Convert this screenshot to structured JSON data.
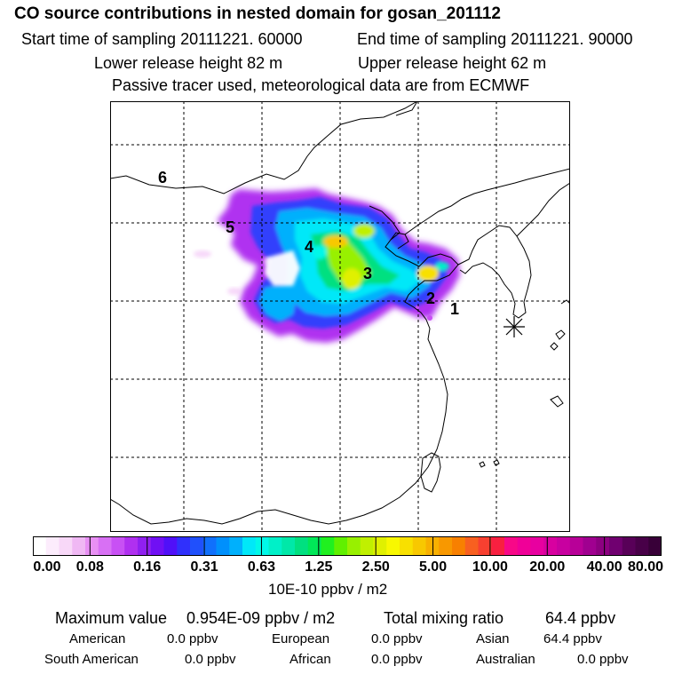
{
  "header": {
    "title": "CO  source contributions in nested domain for gosan_201112",
    "start_label": "Start time of sampling 20111221. 60000",
    "end_label": "End time of sampling 20111221. 90000",
    "lower_label": "Lower release height   82 m",
    "upper_label": "Upper release height   62 m",
    "note": "Passive tracer used, meteorological data are from ECMWF"
  },
  "map": {
    "markers": [
      "1",
      "2",
      "3",
      "4",
      "5",
      "6"
    ],
    "receptor_icon": "asterisk-icon"
  },
  "colorbar": {
    "ticks": [
      "0.00",
      "0.08",
      "0.16",
      "0.31",
      "0.63",
      "1.25",
      "2.50",
      "5.00",
      "10.00",
      "20.00",
      "40.00",
      "80.00"
    ],
    "unit": "10E-10 ppbv / m2",
    "colors": [
      "#ffffff",
      "#fcecfc",
      "#f8d8f8",
      "#f0b8f4",
      "#e890f4",
      "#d870f4",
      "#c850f4",
      "#b030f0",
      "#9020f0",
      "#7010f4",
      "#5010f8",
      "#3030fc",
      "#2050fc",
      "#1070fc",
      "#0090fc",
      "#00b0fc",
      "#00e8f8",
      "#00f8e8",
      "#00f0c8",
      "#00e8a8",
      "#00e080",
      "#00e858",
      "#20f020",
      "#60f000",
      "#98f000",
      "#c0f000",
      "#e0f000",
      "#f8f800",
      "#f8e000",
      "#f8c800",
      "#f8b000",
      "#f89800",
      "#f88000",
      "#f86020",
      "#f84030",
      "#f82040",
      "#f80888",
      "#f00098",
      "#e800a0",
      "#d800a0",
      "#c800a0",
      "#b80098",
      "#a00090",
      "#8c0080",
      "#700070",
      "#580058",
      "#480048",
      "#380038"
    ]
  },
  "stats": {
    "max_label": "Maximum value",
    "max_value": "0.954E-09 ppbv / m2",
    "total_label": "Total mixing ratio",
    "total_value": "64.4 ppbv"
  },
  "regions": [
    {
      "name": "American",
      "value": "0.0 ppbv"
    },
    {
      "name": "European",
      "value": "0.0 ppbv"
    },
    {
      "name": "Asian",
      "value": "64.4 ppbv"
    },
    {
      "name": "South American",
      "value": "0.0 ppbv"
    },
    {
      "name": "African",
      "value": "0.0 ppbv"
    },
    {
      "name": "Australian",
      "value": "0.0 ppbv"
    }
  ]
}
